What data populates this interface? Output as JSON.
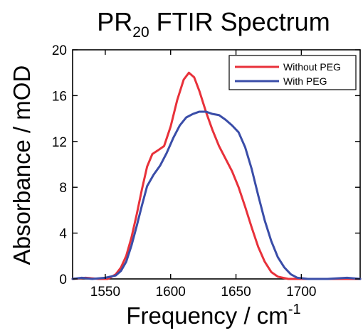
{
  "chart_data": {
    "type": "line",
    "title": "PR",
    "title_subscript": "20",
    "title_suffix": " FTIR Spectrum",
    "xlabel": "Frequency / cm",
    "xlabel_superscript": "-1",
    "ylabel": "Absorbance / mOD",
    "xlim": [
      1525,
      1745
    ],
    "ylim": [
      0,
      20
    ],
    "x_ticks": [
      1550,
      1600,
      1650,
      1700
    ],
    "y_ticks": [
      0,
      4,
      8,
      12,
      16,
      20
    ],
    "grid": false,
    "legend_position": "top-right",
    "series": [
      {
        "name": "Without PEG",
        "color": "#e8313a",
        "points": [
          [
            1525,
            0.0
          ],
          [
            1535,
            0.1
          ],
          [
            1545,
            0.0
          ],
          [
            1552,
            0.0
          ],
          [
            1558,
            0.4
          ],
          [
            1562,
            1.0
          ],
          [
            1566,
            2.0
          ],
          [
            1570,
            3.6
          ],
          [
            1574,
            5.6
          ],
          [
            1578,
            7.8
          ],
          [
            1582,
            9.8
          ],
          [
            1586,
            10.9
          ],
          [
            1590,
            11.2
          ],
          [
            1595,
            11.6
          ],
          [
            1600,
            13.3
          ],
          [
            1605,
            15.6
          ],
          [
            1610,
            17.4
          ],
          [
            1614,
            18.0
          ],
          [
            1618,
            17.6
          ],
          [
            1622,
            16.4
          ],
          [
            1627,
            14.6
          ],
          [
            1632,
            13.0
          ],
          [
            1637,
            11.6
          ],
          [
            1642,
            10.5
          ],
          [
            1647,
            9.4
          ],
          [
            1652,
            8.0
          ],
          [
            1657,
            6.3
          ],
          [
            1662,
            4.5
          ],
          [
            1667,
            2.8
          ],
          [
            1672,
            1.5
          ],
          [
            1677,
            0.6
          ],
          [
            1682,
            0.2
          ],
          [
            1690,
            0.0
          ],
          [
            1700,
            0.0
          ],
          [
            1720,
            0.0
          ],
          [
            1745,
            0.0
          ]
        ]
      },
      {
        "name": "With PEG",
        "color": "#3a4da8",
        "points": [
          [
            1525,
            0.0
          ],
          [
            1532,
            0.1
          ],
          [
            1540,
            0.0
          ],
          [
            1550,
            0.1
          ],
          [
            1558,
            0.3
          ],
          [
            1562,
            0.7
          ],
          [
            1566,
            1.5
          ],
          [
            1570,
            2.9
          ],
          [
            1574,
            4.6
          ],
          [
            1578,
            6.4
          ],
          [
            1582,
            8.1
          ],
          [
            1587,
            9.1
          ],
          [
            1592,
            9.9
          ],
          [
            1597,
            11.0
          ],
          [
            1602,
            12.3
          ],
          [
            1607,
            13.4
          ],
          [
            1612,
            14.1
          ],
          [
            1617,
            14.4
          ],
          [
            1622,
            14.6
          ],
          [
            1627,
            14.6
          ],
          [
            1632,
            14.4
          ],
          [
            1637,
            14.3
          ],
          [
            1642,
            13.9
          ],
          [
            1647,
            13.4
          ],
          [
            1652,
            12.8
          ],
          [
            1657,
            11.5
          ],
          [
            1662,
            9.6
          ],
          [
            1667,
            7.3
          ],
          [
            1672,
            5.1
          ],
          [
            1677,
            3.3
          ],
          [
            1682,
            1.9
          ],
          [
            1687,
            1.0
          ],
          [
            1692,
            0.4
          ],
          [
            1697,
            0.1
          ],
          [
            1705,
            0.0
          ],
          [
            1720,
            0.0
          ],
          [
            1735,
            0.1
          ],
          [
            1745,
            0.0
          ]
        ]
      }
    ]
  }
}
